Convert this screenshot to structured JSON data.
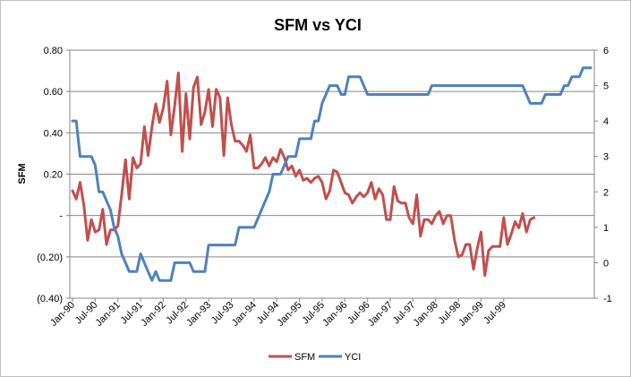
{
  "chart_data": {
    "type": "line",
    "title": "SFM vs YCI",
    "ylabel": "SFM",
    "y2label": "",
    "xlabel": "",
    "ylim": [
      -0.4,
      0.8
    ],
    "y2lim": [
      -1,
      6
    ],
    "grid": true,
    "legend": "bottom",
    "y_ticks": [
      "(0.40)",
      "(0.20)",
      "-",
      "0.20",
      "0.40",
      "0.60",
      "0.80"
    ],
    "y2_ticks": [
      "-1",
      "0",
      "1",
      "2",
      "3",
      "4",
      "5",
      "6"
    ],
    "x_ticks": [
      "Jan-90",
      "Jul-90",
      "Jan-91",
      "Jul-91",
      "Jan-92",
      "Jul-92",
      "Jan-93",
      "Jul-93",
      "Jan-94",
      "Jul-94",
      "Jan-95",
      "Jul-95",
      "Jan-96",
      "Jul-96",
      "Jan-97",
      "Jul-97",
      "Jan-98",
      "Jul-98",
      "Jan-99",
      "Jul-99"
    ],
    "x_start": "Jan-90",
    "x_step": "1 month",
    "series": [
      {
        "name": "SFM",
        "axis": "left",
        "color": "#c0504d",
        "values": [
          0.12,
          0.08,
          0.16,
          0.05,
          -0.12,
          -0.02,
          -0.08,
          -0.07,
          0.03,
          -0.14,
          -0.07,
          -0.07,
          -0.05,
          0.1,
          0.27,
          0.08,
          0.28,
          0.23,
          0.25,
          0.43,
          0.29,
          0.43,
          0.54,
          0.45,
          0.52,
          0.65,
          0.39,
          0.53,
          0.69,
          0.31,
          0.59,
          0.37,
          0.62,
          0.67,
          0.44,
          0.5,
          0.61,
          0.43,
          0.61,
          0.57,
          0.29,
          0.57,
          0.44,
          0.36,
          0.36,
          0.34,
          0.31,
          0.39,
          0.23,
          0.23,
          0.25,
          0.28,
          0.24,
          0.28,
          0.26,
          0.32,
          0.28,
          0.22,
          0.24,
          0.19,
          0.22,
          0.17,
          0.18,
          0.16,
          0.18,
          0.19,
          0.16,
          0.08,
          0.12,
          0.22,
          0.21,
          0.16,
          0.11,
          0.1,
          0.06,
          0.09,
          0.11,
          0.09,
          0.11,
          0.16,
          0.08,
          0.13,
          0.1,
          -0.02,
          -0.02,
          0.14,
          0.07,
          0.06,
          0.06,
          -0.01,
          -0.04,
          0.1,
          -0.1,
          -0.02,
          -0.02,
          -0.04,
          0.0,
          0.02,
          -0.04,
          0.0,
          0.0,
          -0.12,
          -0.2,
          -0.19,
          -0.14,
          -0.14,
          -0.26,
          -0.16,
          -0.08,
          -0.29,
          -0.17,
          -0.15,
          -0.15,
          -0.15,
          -0.01,
          -0.14,
          -0.09,
          -0.03,
          -0.06,
          0.01,
          -0.08,
          -0.02,
          -0.01
        ]
      },
      {
        "name": "YCI",
        "axis": "right",
        "color": "#4f81bd",
        "values": [
          4,
          4,
          3,
          3,
          3,
          3,
          2.75,
          2,
          2,
          1.75,
          1.5,
          1,
          0.75,
          0.25,
          0,
          -0.25,
          -0.25,
          -0.25,
          0.25,
          0,
          -0.25,
          -0.5,
          -0.25,
          -0.5,
          -0.5,
          -0.5,
          -0.5,
          0,
          0,
          0,
          0,
          0,
          -0.25,
          -0.25,
          -0.25,
          -0.25,
          0.5,
          0.5,
          0.5,
          0.5,
          0.5,
          0.5,
          0.5,
          0.5,
          1,
          1,
          1,
          1,
          1,
          1.25,
          1.5,
          1.75,
          2,
          2.5,
          2.5,
          2.5,
          2.75,
          3,
          3,
          3,
          3.5,
          3.5,
          3.5,
          3.5,
          4,
          4,
          4.5,
          4.75,
          5,
          5,
          5,
          4.75,
          4.75,
          5.25,
          5.25,
          5.25,
          5.25,
          5,
          4.75,
          4.75,
          4.75,
          4.75,
          4.75,
          4.75,
          4.75,
          4.75,
          4.75,
          4.75,
          4.75,
          4.75,
          4.75,
          4.75,
          4.75,
          4.75,
          4.75,
          5,
          5,
          5,
          5,
          5,
          5,
          5,
          5,
          5,
          5,
          5,
          5,
          5,
          5,
          5,
          5,
          5,
          5,
          5,
          5,
          5,
          5,
          5,
          5,
          5,
          4.75,
          4.5,
          4.5,
          4.5,
          4.5,
          4.75,
          4.75,
          4.75,
          4.75,
          4.75,
          5,
          5,
          5.25,
          5.25,
          5.25,
          5.5,
          5.5,
          5.5
        ]
      }
    ]
  }
}
